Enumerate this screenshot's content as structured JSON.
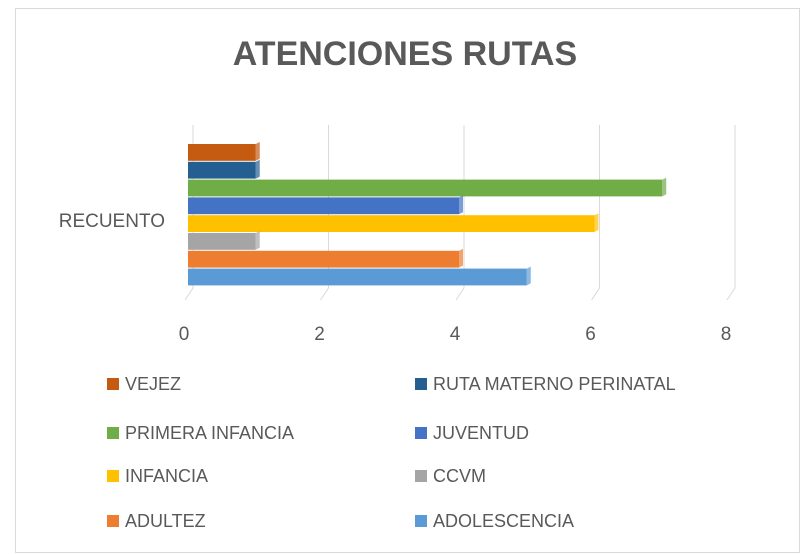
{
  "chart_data": {
    "type": "bar",
    "orientation": "horizontal",
    "title": "ATENCIONES RUTAS",
    "categories": [
      "RECUENTO"
    ],
    "series": [
      {
        "name": "VEJEZ",
        "color": "#c55a11",
        "values": [
          1
        ]
      },
      {
        "name": "RUTA MATERNO PERINATAL",
        "color": "#255e91",
        "values": [
          1
        ]
      },
      {
        "name": "PRIMERA INFANCIA",
        "color": "#70ad47",
        "values": [
          7
        ]
      },
      {
        "name": "JUVENTUD",
        "color": "#4472c4",
        "values": [
          4
        ]
      },
      {
        "name": "INFANCIA",
        "color": "#ffc000",
        "values": [
          6
        ]
      },
      {
        "name": "CCVM",
        "color": "#a5a5a5",
        "values": [
          1
        ]
      },
      {
        "name": "ADULTEZ",
        "color": "#ed7d31",
        "values": [
          4
        ]
      },
      {
        "name": "ADOLESCENCIA",
        "color": "#5b9bd5",
        "values": [
          5
        ]
      }
    ],
    "xlim": [
      0,
      8
    ],
    "xticks": [
      0,
      2,
      4,
      6,
      8
    ],
    "grid": true,
    "legend": "bottom"
  }
}
